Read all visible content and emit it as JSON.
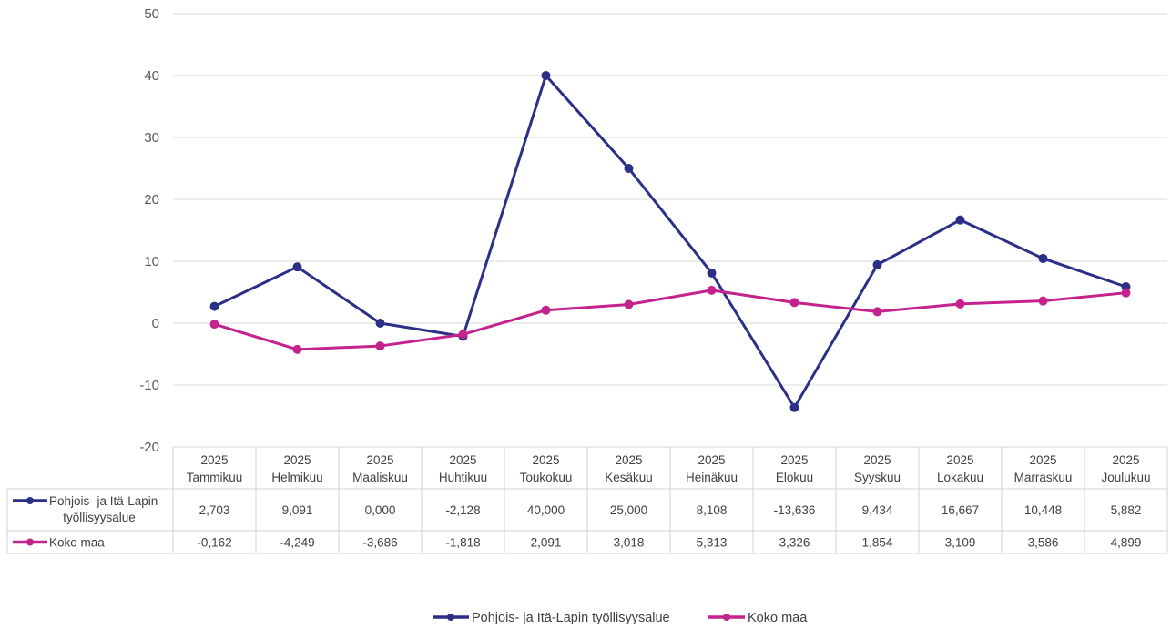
{
  "chart_data": {
    "type": "line",
    "title": "",
    "xlabel": "",
    "ylabel": "",
    "ylim": [
      -20,
      50
    ],
    "yticks": [
      50,
      40,
      30,
      20,
      10,
      0,
      -10,
      -20
    ],
    "grid": true,
    "legend_position": "bottom",
    "categories": [
      {
        "year": "2025",
        "month": "Tammikuu"
      },
      {
        "year": "2025",
        "month": "Helmikuu"
      },
      {
        "year": "2025",
        "month": "Maaliskuu"
      },
      {
        "year": "2025",
        "month": "Huhtikuu"
      },
      {
        "year": "2025",
        "month": "Toukokuu"
      },
      {
        "year": "2025",
        "month": "Kesäkuu"
      },
      {
        "year": "2025",
        "month": "Heinäkuu"
      },
      {
        "year": "2025",
        "month": "Elokuu"
      },
      {
        "year": "2025",
        "month": "Syyskuu"
      },
      {
        "year": "2025",
        "month": "Lokakuu"
      },
      {
        "year": "2025",
        "month": "Marraskuu"
      },
      {
        "year": "2025",
        "month": "Joulukuu"
      }
    ],
    "series": [
      {
        "name": "Pohjois- ja Itä-Lapin työllisyysalue",
        "table_label_lines": [
          "Pohjois- ja Itä-Lapin",
          "työllisyysalue"
        ],
        "color": "#2B2F86",
        "values": [
          2.703,
          9.091,
          0.0,
          -2.128,
          40.0,
          25.0,
          8.108,
          -13.636,
          9.434,
          16.667,
          10.448,
          5.882
        ],
        "labels": [
          "2,703",
          "9,091",
          "0,000",
          "-2,128",
          "40,000",
          "25,000",
          "8,108",
          "-13,636",
          "9,434",
          "16,667",
          "10,448",
          "5,882"
        ]
      },
      {
        "name": "Koko maa",
        "table_label_lines": [
          "Koko maa"
        ],
        "color": "#C4238E",
        "values": [
          -0.162,
          -4.249,
          -3.686,
          -1.818,
          2.091,
          3.018,
          5.313,
          3.326,
          1.854,
          3.109,
          3.586,
          4.899
        ],
        "labels": [
          "-0,162",
          "-4,249",
          "-3,686",
          "-1,818",
          "2,091",
          "3,018",
          "5,313",
          "3,326",
          "1,854",
          "3,109",
          "3,586",
          "4,899"
        ]
      }
    ]
  }
}
